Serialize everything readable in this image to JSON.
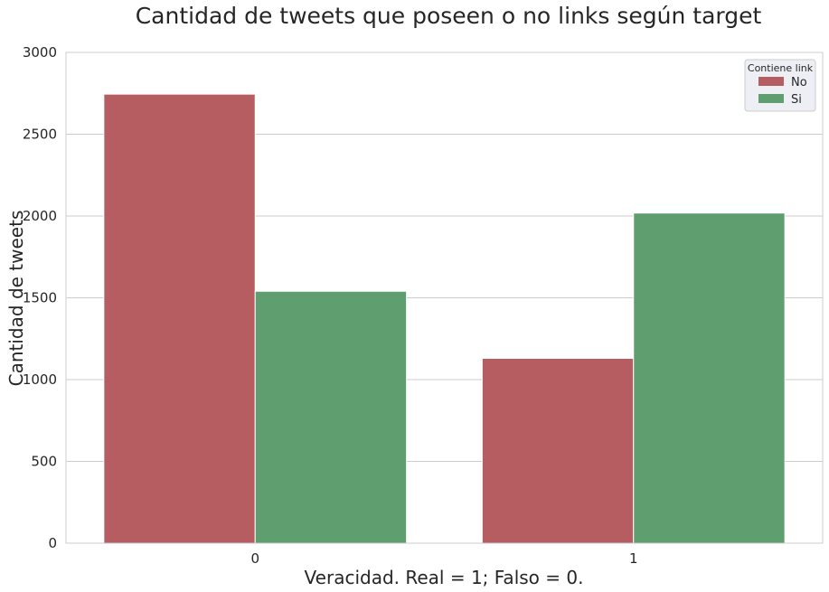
{
  "chart_data": {
    "type": "bar",
    "title": "Cantidad de tweets que poseen o no links según target",
    "xlabel": "Veracidad. Real = 1; Falso = 0.",
    "ylabel": "Cantidad de tweets",
    "categories": [
      "0",
      "1"
    ],
    "series": [
      {
        "name": "No",
        "color": "#b55d60",
        "values": [
          2745,
          1130
        ]
      },
      {
        "name": "Si",
        "color": "#5f9e6e",
        "values": [
          1540,
          2018
        ]
      }
    ],
    "ylim": [
      0,
      3000
    ],
    "yticks": [
      0,
      500,
      1000,
      1500,
      2000,
      2500,
      3000
    ],
    "grid": true,
    "legend": {
      "title": "Contiene link",
      "placement": "top-right"
    }
  }
}
